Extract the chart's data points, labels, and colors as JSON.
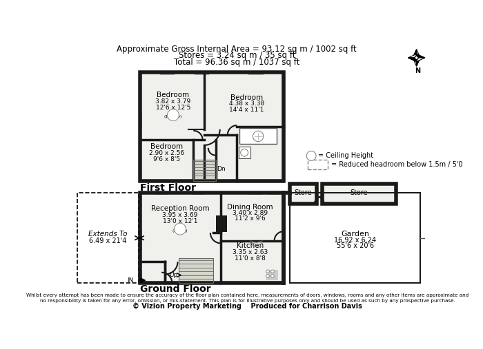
{
  "title_line1": "Approximate Gross Internal Area = 93.12 sq m / 1002 sq ft",
  "title_line2": "Stores = 3.24 sq m / 35 sq ft",
  "title_line3": "Total = 96.36 sq m / 1037 sq ft",
  "first_floor_label": "First Floor",
  "ground_floor_label": "Ground Floor",
  "disclaimer": "Whilst every attempt has been made to ensure the accuracy of the floor plan contained here, measurements of doors, windows, rooms and any other items are approximate and\nno responsibility is taken for any error, omission, or mis-statement. This plan is for illustrative purposes only and should be used as such by any prospective purchase.",
  "copyright": "© Vizion Property Marketing    Produced for Charrison Davis",
  "wall_color": "#1a1a1a",
  "bg_color": "#ffffff",
  "room_fill": "#f2f2ee",
  "legend_ch": "= Ceiling Height",
  "legend_rh": "= Reduced headroom below 1.5m / 5'0"
}
